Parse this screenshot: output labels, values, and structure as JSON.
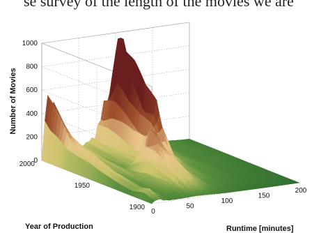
{
  "caption_fragment": "se survey of the length of the movies we are",
  "chart_data": {
    "type": "surface",
    "title": "",
    "xlabel": "Runtime [minutes]",
    "ylabel": "Year of Production",
    "zlabel": "Number of Movies",
    "x_ticks": [
      "0",
      "50",
      "100",
      "150",
      "200"
    ],
    "y_ticks": [
      "1900",
      "1950",
      "2000"
    ],
    "z_ticks": [
      "0",
      "200",
      "400",
      "600",
      "800",
      "1000"
    ],
    "xlim": [
      0,
      200
    ],
    "ylim": [
      1900,
      2000
    ],
    "zlim": [
      0,
      1000
    ],
    "grid": true,
    "colormap": [
      "#2f6e2f",
      "#5a8f3c",
      "#c9c46a",
      "#e8c58a",
      "#a0522d",
      "#6b1e1e"
    ],
    "peak_runtimes": [
      90,
      93,
      95,
      100,
      104
    ],
    "series": [
      {
        "year": 2000,
        "points": [
          [
            0,
            0
          ],
          [
            5,
            400
          ],
          [
            10,
            520
          ],
          [
            15,
            430
          ],
          [
            25,
            80
          ],
          [
            40,
            160
          ],
          [
            50,
            60
          ],
          [
            70,
            120
          ],
          [
            85,
            380
          ],
          [
            90,
            490
          ],
          [
            95,
            330
          ],
          [
            105,
            120
          ],
          [
            120,
            60
          ],
          [
            150,
            20
          ],
          [
            200,
            5
          ]
        ]
      },
      {
        "year": 1990,
        "points": [
          [
            0,
            0
          ],
          [
            5,
            300
          ],
          [
            10,
            420
          ],
          [
            15,
            300
          ],
          [
            25,
            60
          ],
          [
            40,
            120
          ],
          [
            50,
            50
          ],
          [
            70,
            100
          ],
          [
            85,
            420
          ],
          [
            93,
            1060
          ],
          [
            100,
            520
          ],
          [
            110,
            180
          ],
          [
            125,
            60
          ],
          [
            150,
            20
          ],
          [
            200,
            5
          ]
        ]
      },
      {
        "year": 1980,
        "points": [
          [
            0,
            0
          ],
          [
            5,
            180
          ],
          [
            10,
            260
          ],
          [
            15,
            200
          ],
          [
            25,
            50
          ],
          [
            40,
            100
          ],
          [
            50,
            40
          ],
          [
            70,
            90
          ],
          [
            85,
            380
          ],
          [
            95,
            760
          ],
          [
            104,
            440
          ],
          [
            115,
            150
          ],
          [
            130,
            50
          ],
          [
            160,
            15
          ],
          [
            200,
            5
          ]
        ]
      },
      {
        "year": 1970,
        "points": [
          [
            0,
            0
          ],
          [
            5,
            140
          ],
          [
            10,
            200
          ],
          [
            15,
            150
          ],
          [
            25,
            40
          ],
          [
            40,
            80
          ],
          [
            50,
            35
          ],
          [
            70,
            80
          ],
          [
            85,
            320
          ],
          [
            95,
            590
          ],
          [
            105,
            360
          ],
          [
            115,
            120
          ],
          [
            130,
            40
          ],
          [
            160,
            12
          ],
          [
            200,
            4
          ]
        ]
      },
      {
        "year": 1960,
        "points": [
          [
            0,
            0
          ],
          [
            5,
            120
          ],
          [
            10,
            170
          ],
          [
            15,
            130
          ],
          [
            25,
            35
          ],
          [
            40,
            70
          ],
          [
            50,
            30
          ],
          [
            70,
            80
          ],
          [
            85,
            300
          ],
          [
            95,
            520
          ],
          [
            105,
            300
          ],
          [
            115,
            100
          ],
          [
            130,
            35
          ],
          [
            160,
            10
          ],
          [
            200,
            3
          ]
        ]
      },
      {
        "year": 1950,
        "points": [
          [
            0,
            0
          ],
          [
            5,
            90
          ],
          [
            10,
            140
          ],
          [
            15,
            100
          ],
          [
            25,
            30
          ],
          [
            40,
            60
          ],
          [
            50,
            40
          ],
          [
            65,
            220
          ],
          [
            75,
            380
          ],
          [
            85,
            250
          ],
          [
            95,
            140
          ],
          [
            110,
            60
          ],
          [
            130,
            25
          ],
          [
            160,
            8
          ],
          [
            200,
            2
          ]
        ]
      },
      {
        "year": 1940,
        "points": [
          [
            0,
            0
          ],
          [
            5,
            70
          ],
          [
            10,
            110
          ],
          [
            15,
            80
          ],
          [
            25,
            25
          ],
          [
            40,
            50
          ],
          [
            50,
            60
          ],
          [
            60,
            180
          ],
          [
            70,
            300
          ],
          [
            80,
            220
          ],
          [
            90,
            120
          ],
          [
            105,
            50
          ],
          [
            130,
            20
          ],
          [
            160,
            6
          ],
          [
            200,
            2
          ]
        ]
      },
      {
        "year": 1930,
        "points": [
          [
            0,
            0
          ],
          [
            5,
            50
          ],
          [
            10,
            80
          ],
          [
            15,
            60
          ],
          [
            25,
            20
          ],
          [
            40,
            40
          ],
          [
            50,
            50
          ],
          [
            60,
            140
          ],
          [
            70,
            220
          ],
          [
            80,
            160
          ],
          [
            90,
            80
          ],
          [
            105,
            35
          ],
          [
            130,
            12
          ],
          [
            160,
            4
          ],
          [
            200,
            1
          ]
        ]
      },
      {
        "year": 1920,
        "points": [
          [
            0,
            0
          ],
          [
            5,
            40
          ],
          [
            10,
            60
          ],
          [
            15,
            45
          ],
          [
            25,
            20
          ],
          [
            40,
            35
          ],
          [
            50,
            50
          ],
          [
            60,
            110
          ],
          [
            70,
            140
          ],
          [
            80,
            90
          ],
          [
            90,
            50
          ],
          [
            105,
            20
          ],
          [
            130,
            8
          ],
          [
            160,
            3
          ],
          [
            200,
            1
          ]
        ]
      },
      {
        "year": 1910,
        "points": [
          [
            0,
            0
          ],
          [
            5,
            60
          ],
          [
            10,
            90
          ],
          [
            15,
            50
          ],
          [
            25,
            20
          ],
          [
            40,
            25
          ],
          [
            50,
            30
          ],
          [
            60,
            50
          ],
          [
            70,
            60
          ],
          [
            80,
            40
          ],
          [
            90,
            25
          ],
          [
            105,
            10
          ],
          [
            130,
            4
          ],
          [
            160,
            2
          ],
          [
            200,
            0
          ]
        ]
      },
      {
        "year": 1900,
        "points": [
          [
            0,
            0
          ],
          [
            5,
            20
          ],
          [
            10,
            30
          ],
          [
            15,
            15
          ],
          [
            25,
            8
          ],
          [
            40,
            8
          ],
          [
            50,
            10
          ],
          [
            60,
            12
          ],
          [
            70,
            10
          ],
          [
            80,
            8
          ],
          [
            90,
            5
          ],
          [
            105,
            3
          ],
          [
            130,
            1
          ],
          [
            160,
            0
          ],
          [
            200,
            0
          ]
        ]
      }
    ]
  }
}
